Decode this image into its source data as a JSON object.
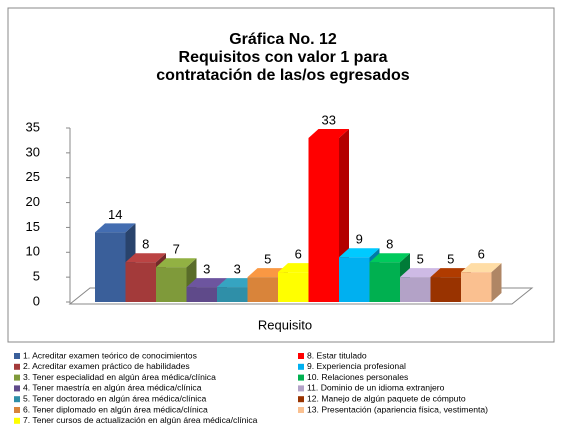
{
  "chart_data": {
    "type": "bar3d",
    "title": [
      "Gráfica No. 12",
      "Requisitos con valor 1 para",
      "contratación de las/os egresados"
    ],
    "x_label": "Requisito",
    "ylim": [
      0,
      35
    ],
    "yticks": [
      0,
      5,
      10,
      15,
      20,
      25,
      30,
      35
    ],
    "series": [
      {
        "name": "1. Acreditar examen teórico de conocimientos",
        "color": "#3a5f9a",
        "values": [
          14
        ]
      },
      {
        "name": "2. Acreditar examen práctico de habilidades",
        "color": "#a33a3a",
        "values": [
          8
        ]
      },
      {
        "name": "3. Tener especialidad en algún área médica/clínica",
        "color": "#7f9a3a",
        "values": [
          7
        ]
      },
      {
        "name": "4. Tener maestría en algún área médica/clínica",
        "color": "#5f4a8a",
        "values": [
          3
        ]
      },
      {
        "name": "5. Tener doctorado en algún área médica/clínica",
        "color": "#2f8fa8",
        "values": [
          3
        ]
      },
      {
        "name": "6. Tener diplomado en algún área médica/clínica",
        "color": "#d9843a",
        "values": [
          5
        ]
      },
      {
        "name": "7. Tener cursos de actualización en algún área médica/clínica",
        "color": "#ffff00",
        "values": [
          6
        ]
      },
      {
        "name": "8. Estar titulado",
        "color": "#ff0000",
        "values": [
          33
        ]
      },
      {
        "name": "9. Experiencia profesional",
        "color": "#00b0f0",
        "values": [
          9
        ]
      },
      {
        "name": "10. Relaciones personales",
        "color": "#00b050",
        "values": [
          8
        ]
      },
      {
        "name": "11. Dominio de un idioma extranjero",
        "color": "#b3a2c7",
        "values": [
          5
        ]
      },
      {
        "name": "12. Manejo de algún paquete de cómputo",
        "color": "#993300",
        "values": [
          5
        ]
      },
      {
        "name": "13. Presentación (apariencia física, vestimenta)",
        "color": "#fac090",
        "values": [
          6
        ]
      }
    ]
  }
}
